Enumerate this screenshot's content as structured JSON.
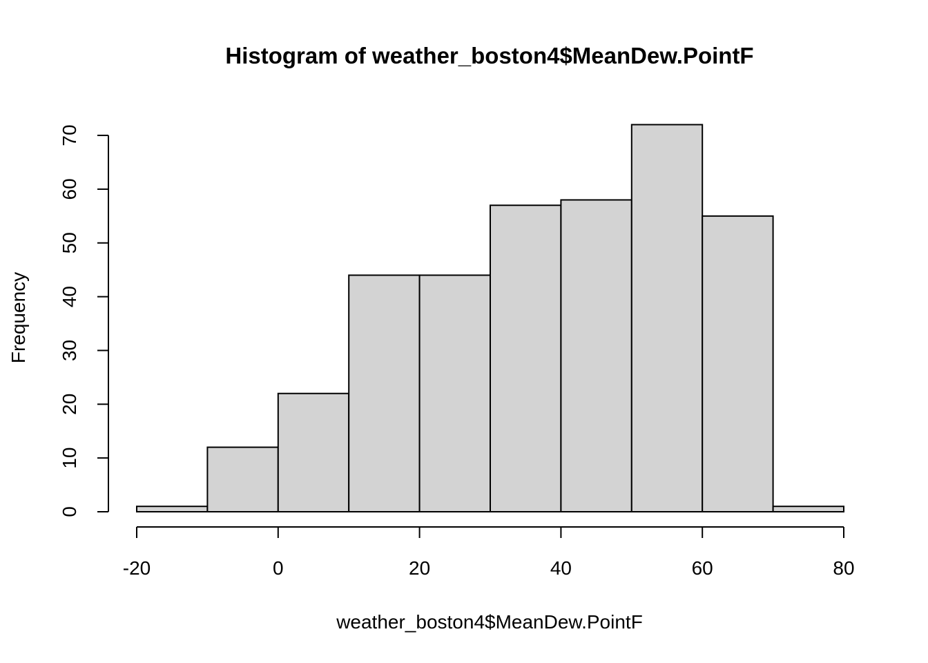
{
  "chart_data": {
    "type": "histogram",
    "title": "Histogram of weather_boston4$MeanDew.PointF",
    "xlabel": "weather_boston4$MeanDew.PointF",
    "ylabel": "Frequency",
    "bins": [
      {
        "x0": -20,
        "x1": -10,
        "count": 1
      },
      {
        "x0": -10,
        "x1": 0,
        "count": 12
      },
      {
        "x0": 0,
        "x1": 10,
        "count": 22
      },
      {
        "x0": 10,
        "x1": 20,
        "count": 44
      },
      {
        "x0": 20,
        "x1": 30,
        "count": 44
      },
      {
        "x0": 30,
        "x1": 40,
        "count": 57
      },
      {
        "x0": 40,
        "x1": 50,
        "count": 58
      },
      {
        "x0": 50,
        "x1": 60,
        "count": 72
      },
      {
        "x0": 60,
        "x1": 70,
        "count": 55
      },
      {
        "x0": 70,
        "x1": 80,
        "count": 1
      }
    ],
    "xlim": [
      -20,
      80
    ],
    "ylim": [
      0,
      72
    ],
    "x_ticks": [
      -20,
      0,
      20,
      40,
      60,
      80
    ],
    "y_ticks": [
      0,
      10,
      20,
      30,
      40,
      50,
      60,
      70
    ],
    "bar_color": "#d3d3d3",
    "edge_color": "#000000",
    "grid": false,
    "legend": "none"
  }
}
